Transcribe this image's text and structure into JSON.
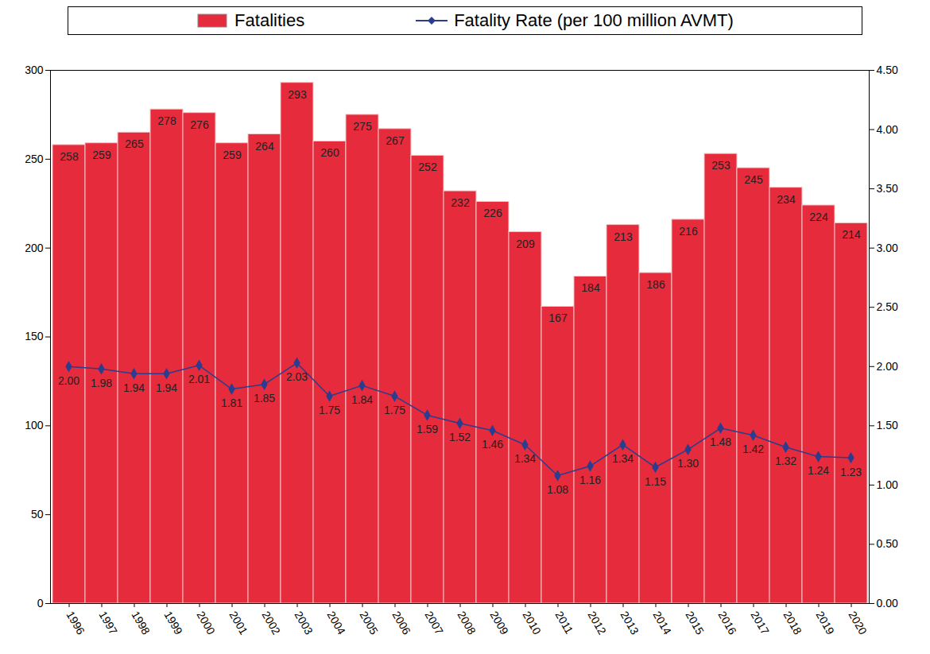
{
  "chart_data": {
    "type": "bar",
    "categories": [
      "1996",
      "1997",
      "1998",
      "1999",
      "2000",
      "2001",
      "2002",
      "2003",
      "2004",
      "2005",
      "2006",
      "2007",
      "2008",
      "2009",
      "2010",
      "2011",
      "2012",
      "2013",
      "2014",
      "2015",
      "2016",
      "2017",
      "2018",
      "2019",
      "2020"
    ],
    "series": [
      {
        "name": "Fatalities",
        "type": "bar",
        "color": "#e52b3c",
        "values": [
          258,
          259,
          265,
          278,
          276,
          259,
          264,
          293,
          260,
          275,
          267,
          252,
          232,
          226,
          209,
          167,
          184,
          213,
          186,
          216,
          253,
          245,
          234,
          224,
          214
        ]
      },
      {
        "name": "Fatality Rate (per 100 million AVMT)",
        "type": "line",
        "axis": "y2",
        "color": "#2b3d8f",
        "marker": "diamond",
        "values": [
          2.0,
          1.98,
          1.94,
          1.94,
          2.01,
          1.81,
          1.85,
          2.03,
          1.75,
          1.84,
          1.75,
          1.59,
          1.52,
          1.46,
          1.34,
          1.08,
          1.16,
          1.34,
          1.15,
          1.3,
          1.48,
          1.42,
          1.32,
          1.24,
          1.23
        ],
        "value_labels": [
          "2.00",
          "1.98",
          "1.94",
          "1.94",
          "2.01",
          "1.81",
          "1.85",
          "2.03",
          "1.75",
          "1.84",
          "1.75",
          "1.59",
          "1.52",
          "1.46",
          "1.34",
          "1.08",
          "1.16",
          "1.34",
          "1.15",
          "1.30",
          "1.48",
          "1.42",
          "1.32",
          "1.24",
          "1.23"
        ]
      }
    ],
    "ylim": [
      0,
      300
    ],
    "yticks": [
      0,
      50,
      100,
      150,
      200,
      250,
      300
    ],
    "y2lim": [
      0,
      4.5
    ],
    "y2ticks": [
      {
        "value": 0,
        "label": "0.00"
      },
      {
        "value": 0.5,
        "label": "0.50"
      },
      {
        "value": 1,
        "label": "1.00"
      },
      {
        "value": 1.5,
        "label": "1.50"
      },
      {
        "value": 2,
        "label": "2.00"
      },
      {
        "value": 2.5,
        "label": "2.50"
      },
      {
        "value": 3,
        "label": "3.00"
      },
      {
        "value": 3.5,
        "label": "3.50"
      },
      {
        "value": 4,
        "label": "4.00"
      },
      {
        "value": 4.5,
        "label": "4.50"
      }
    ],
    "data_labels": true,
    "legend": "top",
    "grid": false
  }
}
